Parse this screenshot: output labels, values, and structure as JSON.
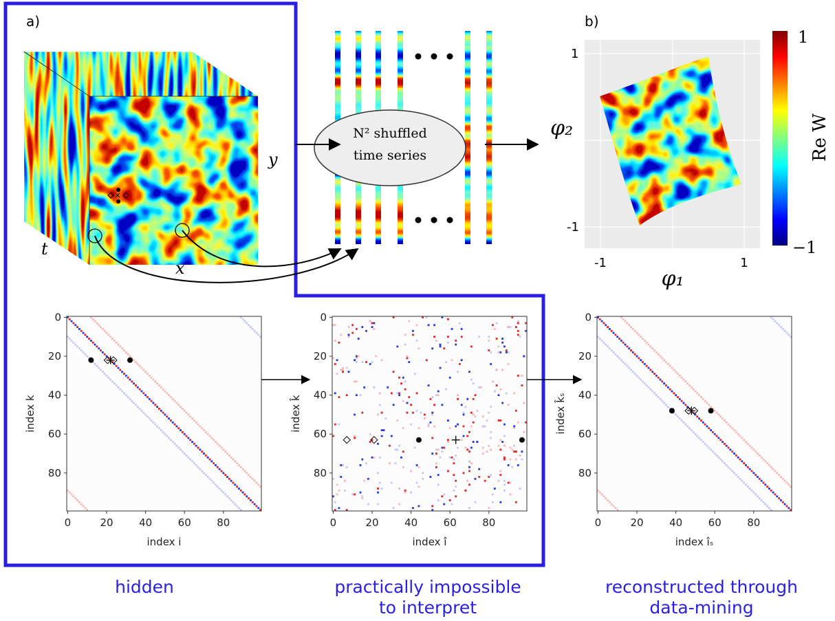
{
  "panel_a": {
    "label": "a)",
    "axis_t": "t",
    "axis_x": "x",
    "axis_y": "y",
    "ellipse_text": [
      "N² shuffled",
      "time series"
    ]
  },
  "panel_b": {
    "label": "b)",
    "xlabel": "φ₁",
    "ylabel": "φ₂",
    "xtick_labels": [
      "-1",
      "1"
    ],
    "ytick_labels": [
      "1",
      "-1"
    ],
    "colorbar_label": "Re W",
    "colorbar_top": "1",
    "colorbar_bottom": "−1"
  },
  "matrices": [
    {
      "xlabel": "index i",
      "ylabel": "index k",
      "xticks": [
        0,
        20,
        40,
        60,
        80
      ],
      "yticks": [
        0,
        20,
        40,
        60,
        80
      ],
      "caption": [
        "hidden"
      ]
    },
    {
      "xlabel": "index î",
      "ylabel": "index k̂",
      "xticks": [
        0,
        20,
        40,
        60,
        80
      ],
      "yticks": [
        0,
        20,
        40,
        60,
        80
      ],
      "caption": [
        "practically impossible",
        "to interpret"
      ]
    },
    {
      "xlabel": "index îₛ",
      "ylabel": "index k̂ₛ",
      "xticks": [
        0,
        20,
        40,
        60,
        80
      ],
      "yticks": [
        0,
        20,
        40,
        60,
        80
      ],
      "caption": [
        "reconstructed through",
        "data-mining"
      ]
    }
  ]
}
